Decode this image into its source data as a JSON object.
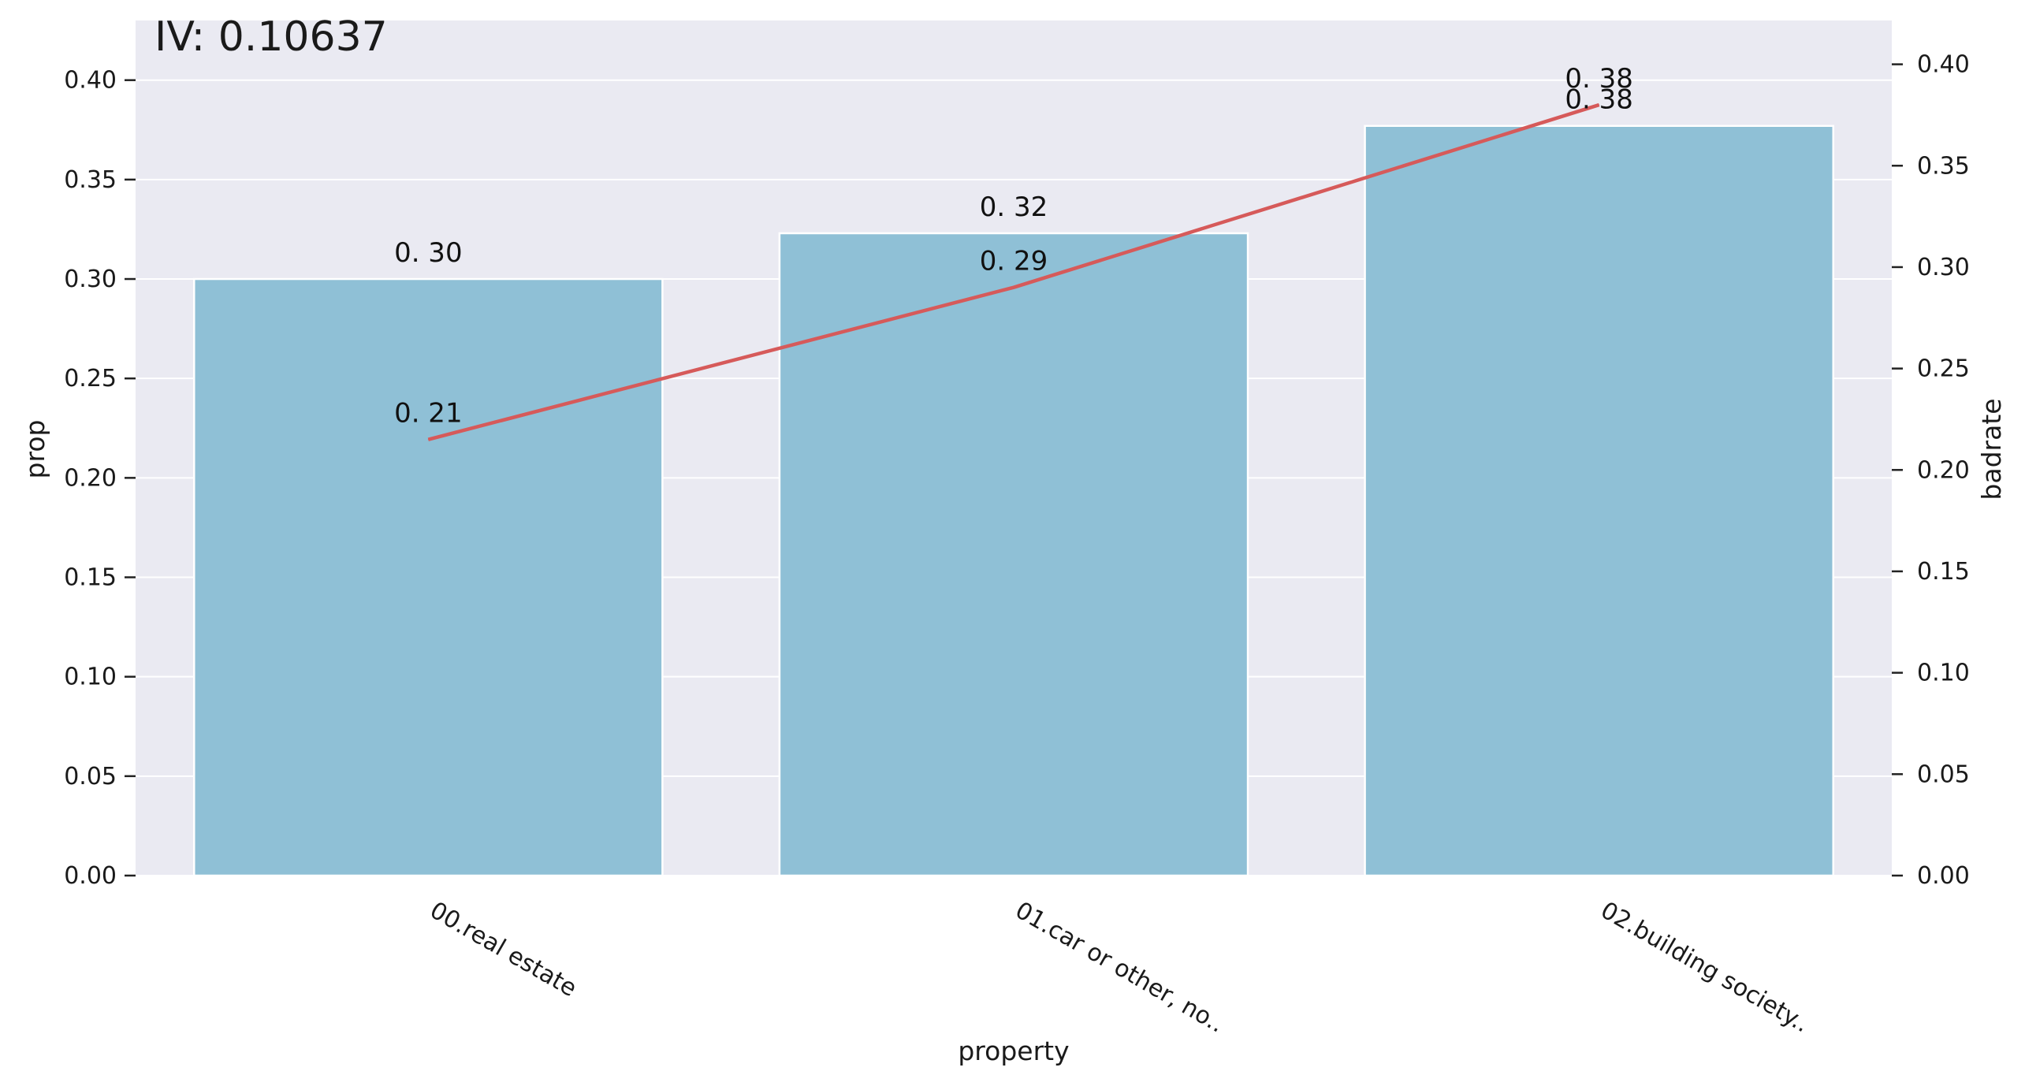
{
  "chart_data": {
    "type": "bar",
    "title": "IV: 0.10637",
    "xlabel": "property",
    "ylabel": "prop",
    "y2label": "badrate",
    "categories": [
      "00.real estate",
      "01.car or other, no..",
      "02.building society.."
    ],
    "series": [
      {
        "name": "prop",
        "kind": "bar",
        "axis": "left",
        "values": [
          0.3,
          0.323,
          0.377
        ],
        "labels": [
          "0. 30",
          "0. 32",
          "0. 38"
        ]
      },
      {
        "name": "badrate",
        "kind": "line",
        "axis": "right",
        "values": [
          0.215,
          0.29,
          0.38
        ],
        "labels": [
          "0. 21",
          "0. 29",
          "0. 38"
        ]
      }
    ],
    "ylim": [
      0,
      0.43
    ],
    "y2lim": [
      0,
      0.4216
    ],
    "yticks": [
      0.0,
      0.05,
      0.1,
      0.15,
      0.2,
      0.25,
      0.3,
      0.35,
      0.4
    ],
    "ytick_labels": [
      "0.00",
      "0.05",
      "0.10",
      "0.15",
      "0.20",
      "0.25",
      "0.30",
      "0.35",
      "0.40"
    ],
    "y2ticks": [
      0.0,
      0.05,
      0.1,
      0.15,
      0.2,
      0.25,
      0.3,
      0.35,
      0.4
    ],
    "y2tick_labels": [
      "0.00",
      "0.05",
      "0.10",
      "0.15",
      "0.20",
      "0.25",
      "0.30",
      "0.35",
      "0.40"
    ],
    "grid": true,
    "colors": {
      "bar": "#8fc0d6",
      "line": "#d65a5a",
      "plot_bg": "#eaeaf2",
      "grid": "#ffffff"
    }
  }
}
